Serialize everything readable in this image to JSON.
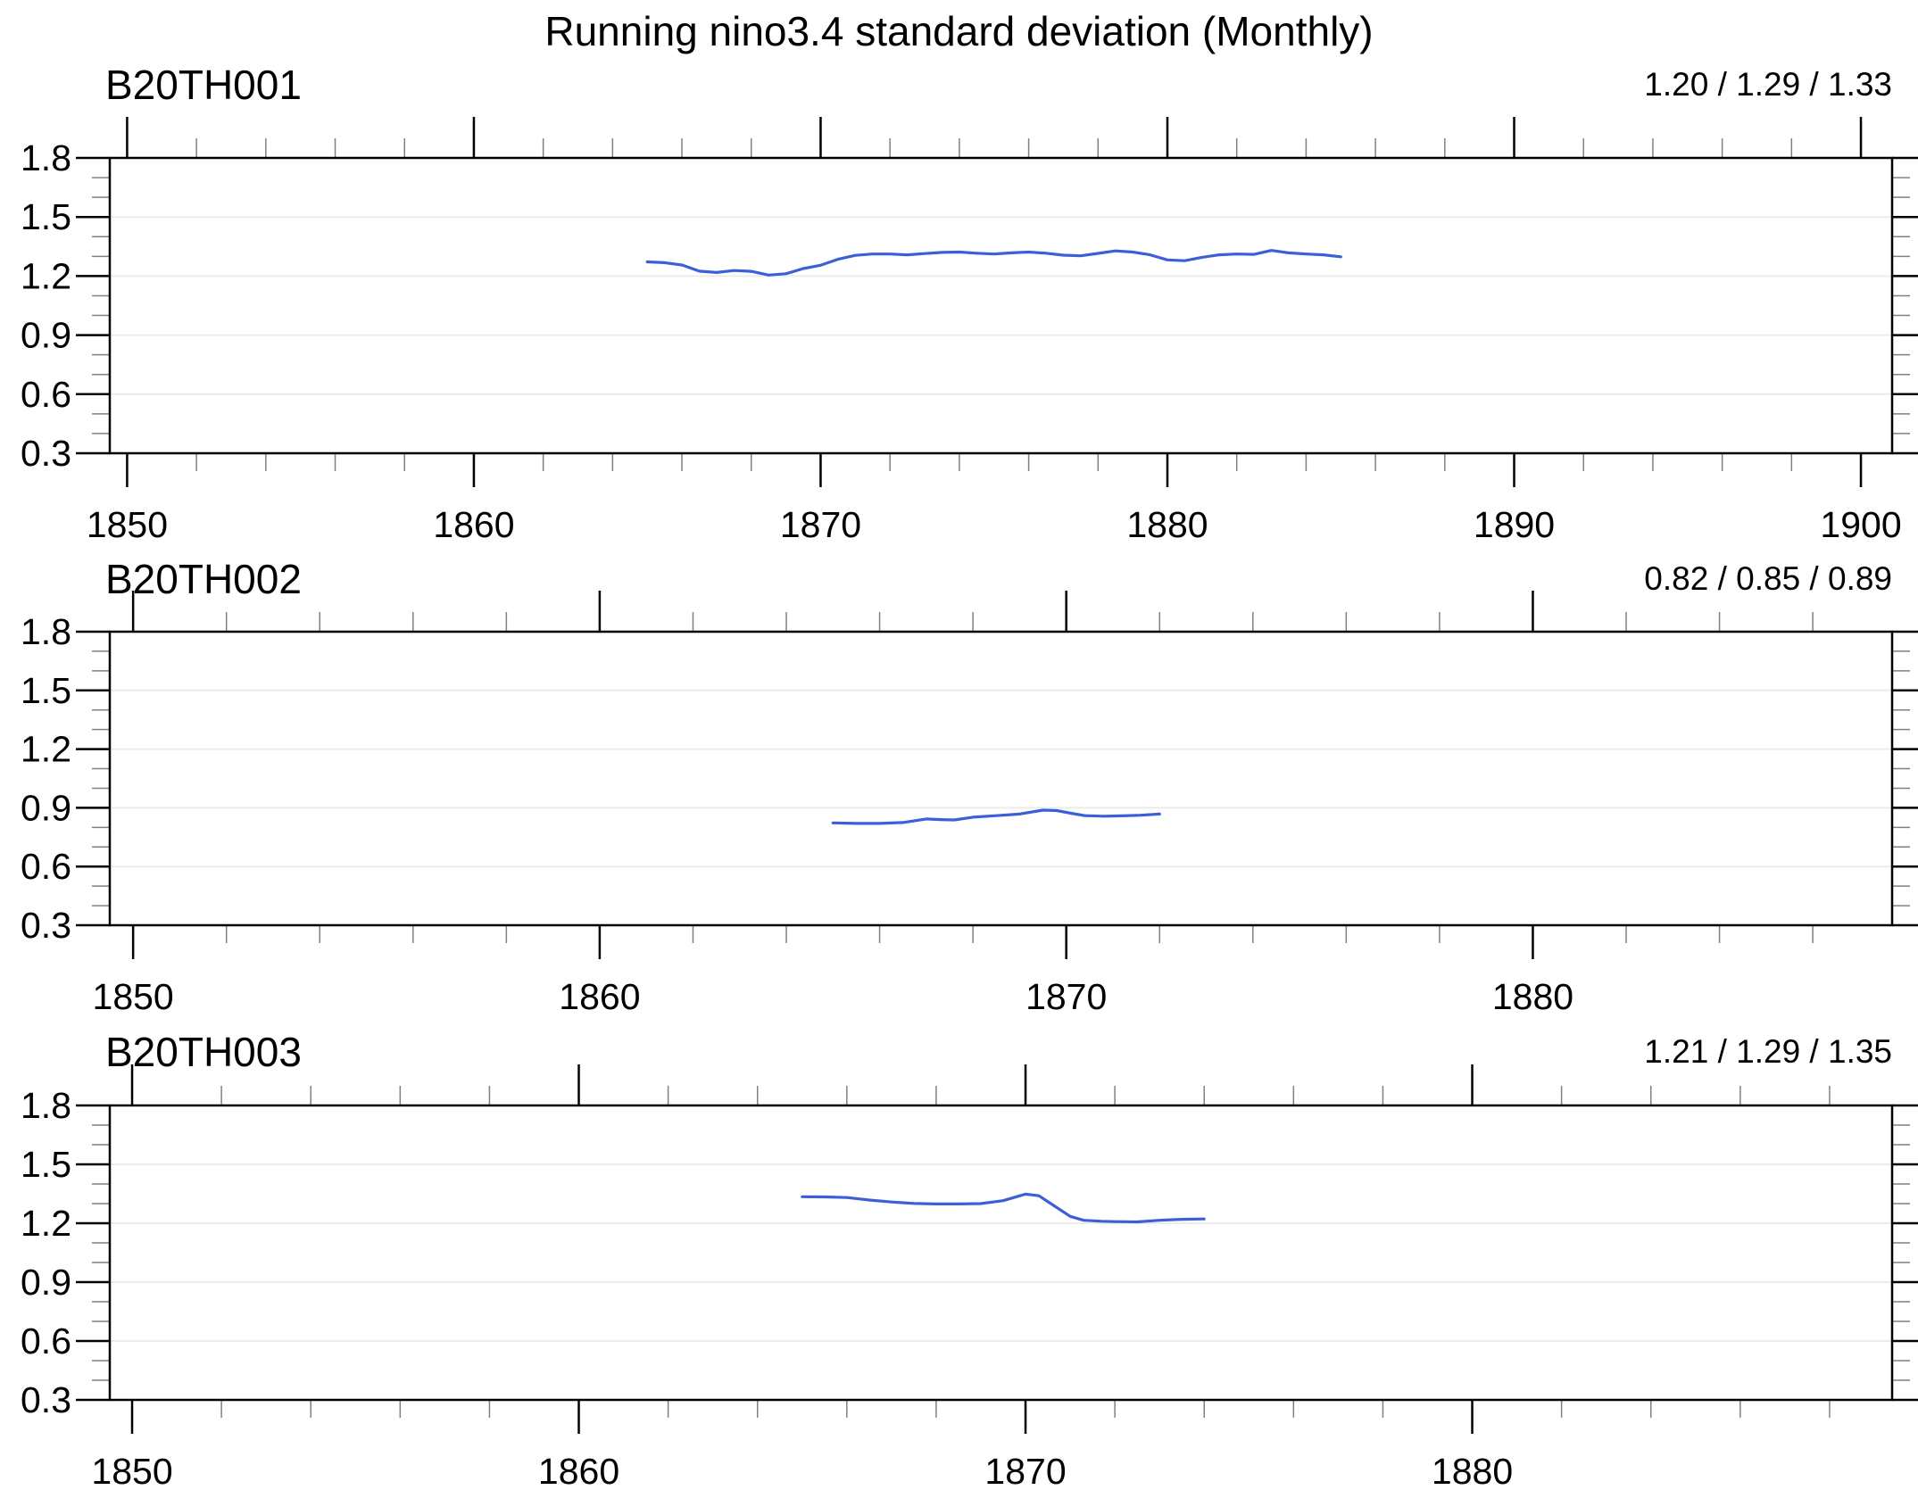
{
  "title": "Running nino3.4 standard deviation (Monthly)",
  "colors": {
    "line": "#3c5fd8",
    "grid": "#ececec",
    "frame": "#000000",
    "tick_major": "#000000",
    "tick_minor": "#808080"
  },
  "chart_data": [
    {
      "type": "line",
      "panel_label": "B20TH001",
      "stats_label": "1.20 / 1.29 / 1.33",
      "stats": {
        "min": 1.2,
        "mean": 1.29,
        "max": 1.33
      },
      "xlim": [
        1849.5,
        1900.9
      ],
      "ylim": [
        0.3,
        1.8
      ],
      "x_major_ticks": [
        1850,
        1860,
        1870,
        1880,
        1890,
        1900
      ],
      "x_minor_step_years": 2,
      "y_major_step": 0.3,
      "y_minor_step": 0.1,
      "y_tick_labels": [
        "1.8",
        "1.5",
        "1.2",
        "0.9",
        "0.6",
        "0.3"
      ],
      "grid": true,
      "legend": "none",
      "series": [
        {
          "name": "B20TH001",
          "points": [
            [
              1865.0,
              1.272
            ],
            [
              1865.5,
              1.268
            ],
            [
              1866.0,
              1.256
            ],
            [
              1866.5,
              1.225
            ],
            [
              1867.0,
              1.218
            ],
            [
              1867.5,
              1.228
            ],
            [
              1868.0,
              1.224
            ],
            [
              1868.5,
              1.205
            ],
            [
              1869.0,
              1.212
            ],
            [
              1869.5,
              1.238
            ],
            [
              1870.0,
              1.255
            ],
            [
              1870.5,
              1.285
            ],
            [
              1871.0,
              1.305
            ],
            [
              1871.5,
              1.312
            ],
            [
              1872.0,
              1.312
            ],
            [
              1872.5,
              1.308
            ],
            [
              1873.0,
              1.314
            ],
            [
              1873.5,
              1.32
            ],
            [
              1874.0,
              1.322
            ],
            [
              1874.5,
              1.316
            ],
            [
              1875.0,
              1.312
            ],
            [
              1875.5,
              1.318
            ],
            [
              1876.0,
              1.322
            ],
            [
              1876.5,
              1.316
            ],
            [
              1877.0,
              1.306
            ],
            [
              1877.5,
              1.303
            ],
            [
              1878.0,
              1.315
            ],
            [
              1878.5,
              1.328
            ],
            [
              1879.0,
              1.322
            ],
            [
              1879.5,
              1.308
            ],
            [
              1880.0,
              1.282
            ],
            [
              1880.5,
              1.278
            ],
            [
              1881.0,
              1.295
            ],
            [
              1881.5,
              1.308
            ],
            [
              1882.0,
              1.312
            ],
            [
              1882.5,
              1.31
            ],
            [
              1883.0,
              1.33
            ],
            [
              1883.5,
              1.318
            ],
            [
              1884.0,
              1.312
            ],
            [
              1884.5,
              1.308
            ],
            [
              1885.0,
              1.298
            ]
          ]
        }
      ]
    },
    {
      "type": "line",
      "panel_label": "B20TH002",
      "stats_label": "0.82 / 0.85 / 0.89",
      "stats": {
        "min": 0.82,
        "mean": 0.85,
        "max": 0.89
      },
      "xlim": [
        1849.5,
        1887.7
      ],
      "ylim": [
        0.3,
        1.8
      ],
      "x_major_ticks": [
        1850,
        1860,
        1870,
        1880
      ],
      "x_minor_step_years": 2,
      "y_major_step": 0.3,
      "y_minor_step": 0.1,
      "y_tick_labels": [
        "1.8",
        "1.5",
        "1.2",
        "0.9",
        "0.6",
        "0.3"
      ],
      "grid": true,
      "legend": "none",
      "series": [
        {
          "name": "B20TH002",
          "points": [
            [
              1865.0,
              0.823
            ],
            [
              1865.5,
              0.82
            ],
            [
              1866.0,
              0.82
            ],
            [
              1866.5,
              0.825
            ],
            [
              1867.0,
              0.843
            ],
            [
              1867.3,
              0.84
            ],
            [
              1867.6,
              0.838
            ],
            [
              1868.0,
              0.852
            ],
            [
              1868.5,
              0.86
            ],
            [
              1869.0,
              0.868
            ],
            [
              1869.5,
              0.888
            ],
            [
              1869.8,
              0.886
            ],
            [
              1870.1,
              0.872
            ],
            [
              1870.4,
              0.86
            ],
            [
              1870.8,
              0.857
            ],
            [
              1871.2,
              0.859
            ],
            [
              1871.6,
              0.862
            ],
            [
              1872.0,
              0.868
            ]
          ]
        }
      ]
    },
    {
      "type": "line",
      "panel_label": "B20TH003",
      "stats_label": "1.21 / 1.29 / 1.35",
      "stats": {
        "min": 1.21,
        "mean": 1.29,
        "max": 1.35
      },
      "xlim": [
        1849.5,
        1889.4
      ],
      "ylim": [
        0.3,
        1.8
      ],
      "x_major_ticks": [
        1850,
        1860,
        1870,
        1880
      ],
      "x_minor_step_years": 2,
      "y_major_step": 0.3,
      "y_minor_step": 0.1,
      "y_tick_labels": [
        "1.8",
        "1.5",
        "1.2",
        "0.9",
        "0.6",
        "0.3"
      ],
      "grid": true,
      "legend": "none",
      "series": [
        {
          "name": "B20TH003",
          "points": [
            [
              1865.0,
              1.335
            ],
            [
              1865.5,
              1.334
            ],
            [
              1866.0,
              1.331
            ],
            [
              1866.5,
              1.318
            ],
            [
              1867.0,
              1.308
            ],
            [
              1867.5,
              1.301
            ],
            [
              1868.0,
              1.298
            ],
            [
              1868.5,
              1.298
            ],
            [
              1869.0,
              1.3
            ],
            [
              1869.5,
              1.315
            ],
            [
              1869.8,
              1.335
            ],
            [
              1870.0,
              1.348
            ],
            [
              1870.3,
              1.34
            ],
            [
              1870.6,
              1.295
            ],
            [
              1871.0,
              1.235
            ],
            [
              1871.3,
              1.215
            ],
            [
              1871.7,
              1.21
            ],
            [
              1872.0,
              1.208
            ],
            [
              1872.5,
              1.207
            ],
            [
              1873.0,
              1.215
            ],
            [
              1873.5,
              1.22
            ],
            [
              1874.0,
              1.222
            ]
          ]
        }
      ]
    }
  ]
}
